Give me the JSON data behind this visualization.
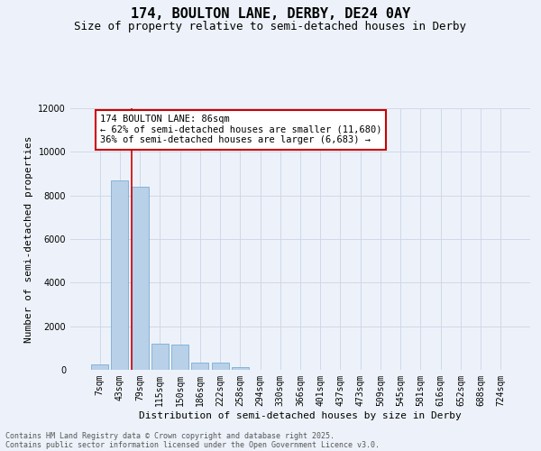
{
  "title": "174, BOULTON LANE, DERBY, DE24 0AY",
  "subtitle": "Size of property relative to semi-detached houses in Derby",
  "xlabel": "Distribution of semi-detached houses by size in Derby",
  "ylabel": "Number of semi-detached properties",
  "footer_line1": "Contains HM Land Registry data © Crown copyright and database right 2025.",
  "footer_line2": "Contains public sector information licensed under the Open Government Licence v3.0.",
  "categories": [
    "7sqm",
    "43sqm",
    "79sqm",
    "115sqm",
    "150sqm",
    "186sqm",
    "222sqm",
    "258sqm",
    "294sqm",
    "330sqm",
    "366sqm",
    "401sqm",
    "437sqm",
    "473sqm",
    "509sqm",
    "545sqm",
    "581sqm",
    "616sqm",
    "652sqm",
    "688sqm",
    "724sqm"
  ],
  "values": [
    250,
    8700,
    8400,
    1200,
    1150,
    330,
    320,
    110,
    0,
    0,
    0,
    0,
    0,
    0,
    0,
    0,
    0,
    0,
    0,
    0,
    0
  ],
  "bar_color": "#b8d0e8",
  "bar_edgecolor": "#7aacd4",
  "grid_color": "#d0d8e8",
  "bg_color": "#edf2fa",
  "vline_color": "#cc0000",
  "vline_position": 1.57,
  "annotation_text": "174 BOULTON LANE: 86sqm\n← 62% of semi-detached houses are smaller (11,680)\n36% of semi-detached houses are larger (6,683) →",
  "annotation_box_edgecolor": "#cc0000",
  "ylim": [
    0,
    12000
  ],
  "yticks": [
    0,
    2000,
    4000,
    6000,
    8000,
    10000,
    12000
  ],
  "title_fontsize": 11,
  "subtitle_fontsize": 9,
  "label_fontsize": 8,
  "tick_fontsize": 7,
  "footer_fontsize": 6,
  "annot_fontsize": 7.5
}
